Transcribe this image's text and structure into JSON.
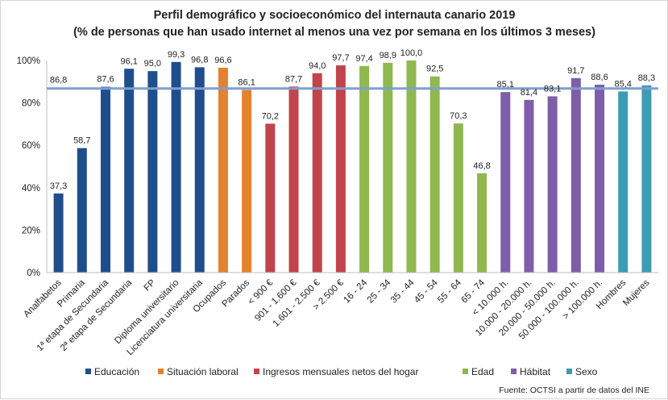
{
  "chart_data": {
    "type": "bar",
    "title": "Perfil demográfico y socioeconómico del internauta canario 2019",
    "subtitle": "(% de personas que han usado internet al menos una vez por semana en los últimos 3 meses)",
    "ylim": [
      0,
      100
    ],
    "yticks": [
      "0%",
      "20%",
      "40%",
      "60%",
      "80%",
      "100%"
    ],
    "ytick_values": [
      0,
      20,
      40,
      60,
      80,
      100
    ],
    "grid": false,
    "reference_line": {
      "value": 86.8,
      "label": "86,8",
      "color": "#7f9fcf"
    },
    "categories": [
      "Analfabetos",
      "Primaria",
      "1ª etapa de Secundaria",
      "2ª etapa de Secundaria",
      "FP",
      "Diploma universitario",
      "Licenciatura universitaria",
      "Ocupados",
      "Parados",
      "< 900 €",
      "901 - 1.600 €",
      "1.601 - 2.500 €",
      "> 2.500 €",
      "16 - 24",
      "25 - 34",
      "35 - 44",
      "45 - 54",
      "55 - 64",
      "65 - 74",
      "< 10.000 h.",
      "10.000 - 20.000 h.",
      "20.000 - 50.000 h.",
      "50.000 - 100.000 h.",
      "> 100.000 h.",
      "Hombres",
      "Mujeres"
    ],
    "values": [
      37.3,
      58.7,
      87.6,
      96.1,
      95.0,
      99.3,
      96.8,
      96.6,
      86.1,
      70.2,
      87.7,
      94.0,
      97.7,
      97.4,
      98.9,
      100.0,
      92.5,
      70.3,
      46.8,
      85.1,
      81.4,
      83.1,
      91.7,
      88.6,
      85.4,
      88.3
    ],
    "value_labels": [
      "37,3",
      "58,7",
      "87,6",
      "96,1",
      "95,0",
      "99,3",
      "96,8",
      "96,6",
      "86,1",
      "70,2",
      "87,7",
      "94,0",
      "97,7",
      "97,4",
      "98,9",
      "100,0",
      "92,5",
      "70,3",
      "46,8",
      "85,1",
      "81,4",
      "83,1",
      "91,7",
      "88,6",
      "85,4",
      "88,3"
    ],
    "groups": [
      0,
      0,
      0,
      0,
      0,
      0,
      0,
      1,
      1,
      2,
      2,
      2,
      2,
      3,
      3,
      3,
      3,
      3,
      3,
      4,
      4,
      4,
      4,
      4,
      5,
      5
    ],
    "series": [
      {
        "name": "Educación",
        "color": "#1f4e8c"
      },
      {
        "name": "Situación laboral",
        "color": "#e3822f"
      },
      {
        "name": "Ingresos mensuales netos del hogar",
        "color": "#c0444b"
      },
      {
        "name": "Edad",
        "color": "#8fb84f"
      },
      {
        "name": "Hábitat",
        "color": "#7e5ea8"
      },
      {
        "name": "Sexo",
        "color": "#3a9db3"
      }
    ],
    "legend_position": "bottom",
    "source": "Fuente:  OCTSI a partir de datos del INE"
  }
}
